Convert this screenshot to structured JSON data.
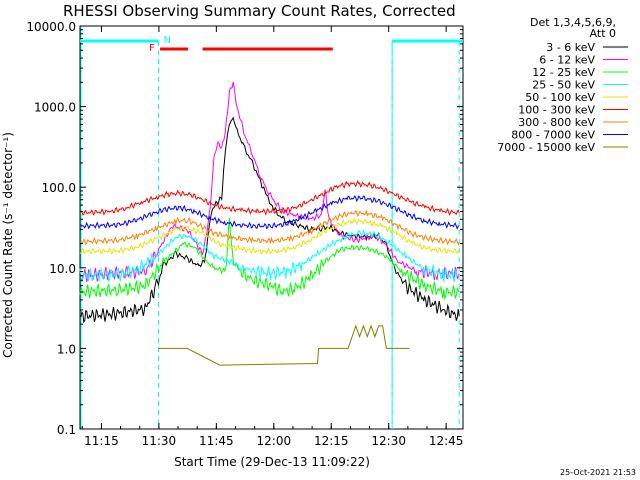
{
  "chart_data": {
    "type": "line",
    "title": "RHESSI Observing Summary Count Rates, Corrected",
    "xlabel": "Start Time (29-Dec-13 11:09:22)",
    "ylabel": "Corrected Count Rate (s⁻¹ detector⁻¹)",
    "yscale": "log",
    "ylim": [
      0.1,
      10000
    ],
    "xlim_min": [
      0,
      100
    ],
    "x_unit": "minutes after 11:09:22",
    "x_ticks": [
      {
        "m": 5.6,
        "label": "11:15"
      },
      {
        "m": 20.6,
        "label": "11:30"
      },
      {
        "m": 35.6,
        "label": "11:45"
      },
      {
        "m": 50.6,
        "label": "12:00"
      },
      {
        "m": 65.6,
        "label": "12:15"
      },
      {
        "m": 80.6,
        "label": "12:30"
      },
      {
        "m": 95.6,
        "label": "12:45"
      }
    ],
    "y_ticks": [
      {
        "v": 10000,
        "label": "10000.0"
      },
      {
        "v": 1000,
        "label": "1000.0"
      },
      {
        "v": 100,
        "label": "100.0"
      },
      {
        "v": 10,
        "label": "10.0"
      },
      {
        "v": 1,
        "label": "1.0"
      },
      {
        "v": 0.1,
        "label": "0.1"
      }
    ],
    "legend_header": [
      "Det 1,3,4,5,6,9,",
      "Att 0"
    ],
    "legend_position": "right",
    "annotations": {
      "flare_marker": "F",
      "night_marker": "N"
    },
    "night_intervals": [
      [
        0,
        20.5
      ],
      [
        81.5,
        100
      ]
    ],
    "saa_dashed_lines": [
      20.5,
      81.5,
      99.0
    ],
    "flare_bars": [
      [
        20.9,
        28.2
      ],
      [
        32.0,
        66.0
      ]
    ],
    "series": [
      {
        "name": "3 - 6 keV",
        "color": "#000000",
        "points": [
          [
            0,
            2.5
          ],
          [
            10,
            2.7
          ],
          [
            17,
            3.1
          ],
          [
            20,
            6
          ],
          [
            22,
            11
          ],
          [
            25,
            15
          ],
          [
            28,
            13
          ],
          [
            31,
            10.5
          ],
          [
            32.5,
            12
          ],
          [
            33,
            17
          ],
          [
            34,
            42
          ],
          [
            35,
            60
          ],
          [
            36,
            65
          ],
          [
            37,
            75
          ],
          [
            38,
            300
          ],
          [
            39,
            600
          ],
          [
            40,
            700
          ],
          [
            41,
            500
          ],
          [
            43,
            300
          ],
          [
            45,
            200
          ],
          [
            47,
            120
          ],
          [
            49,
            75
          ],
          [
            50,
            60
          ],
          [
            52,
            45
          ],
          [
            54,
            38
          ],
          [
            57,
            34
          ],
          [
            60,
            30
          ],
          [
            63,
            31
          ],
          [
            65,
            32
          ],
          [
            68,
            27
          ],
          [
            71,
            25
          ],
          [
            75,
            24
          ],
          [
            78,
            25
          ],
          [
            80,
            19
          ],
          [
            82,
            10
          ],
          [
            85,
            6
          ],
          [
            90,
            4
          ],
          [
            95,
            3
          ],
          [
            99,
            2.5
          ]
        ]
      },
      {
        "name": "6 - 12 keV",
        "color": "#ff00ff",
        "points": [
          [
            0,
            8
          ],
          [
            17,
            9
          ],
          [
            20,
            15
          ],
          [
            24,
            33
          ],
          [
            28,
            30
          ],
          [
            32,
            15
          ],
          [
            33,
            25
          ],
          [
            34,
            55
          ],
          [
            35,
            230
          ],
          [
            36,
            350
          ],
          [
            37,
            300
          ],
          [
            38,
            500
          ],
          [
            39,
            1500
          ],
          [
            40,
            2000
          ],
          [
            41,
            1000
          ],
          [
            43,
            450
          ],
          [
            45,
            260
          ],
          [
            47,
            140
          ],
          [
            49,
            90
          ],
          [
            51,
            65
          ],
          [
            53,
            50
          ],
          [
            56,
            45
          ],
          [
            60,
            40
          ],
          [
            63,
            45
          ],
          [
            64,
            90
          ],
          [
            65,
            40
          ],
          [
            68,
            25
          ],
          [
            72,
            22
          ],
          [
            77,
            25
          ],
          [
            80,
            19
          ],
          [
            83,
            12
          ],
          [
            88,
            9
          ],
          [
            93,
            8.5
          ],
          [
            99,
            8.5
          ]
        ]
      },
      {
        "name": "12 - 25 keV",
        "color": "#00ff00",
        "points": [
          [
            0,
            5
          ],
          [
            10,
            5.3
          ],
          [
            17,
            6
          ],
          [
            22,
            12
          ],
          [
            27,
            20
          ],
          [
            30,
            18
          ],
          [
            33,
            12
          ],
          [
            35,
            10
          ],
          [
            38,
            9
          ],
          [
            39,
            40
          ],
          [
            40,
            12
          ],
          [
            42,
            9
          ],
          [
            45,
            7
          ],
          [
            50,
            6
          ],
          [
            53,
            5
          ],
          [
            56,
            5.5
          ],
          [
            60,
            7.5
          ],
          [
            64,
            12
          ],
          [
            68,
            17
          ],
          [
            72,
            18
          ],
          [
            76,
            17
          ],
          [
            80,
            14
          ],
          [
            84,
            9
          ],
          [
            90,
            6
          ],
          [
            95,
            5
          ],
          [
            99,
            5
          ]
        ]
      },
      {
        "name": "25 - 50 keV",
        "color": "#00ffff",
        "points": [
          [
            0,
            8
          ],
          [
            10,
            8.2
          ],
          [
            15,
            9.5
          ],
          [
            20,
            14
          ],
          [
            25,
            24
          ],
          [
            28,
            25
          ],
          [
            31,
            21
          ],
          [
            35,
            14
          ],
          [
            39,
            12
          ],
          [
            42,
            10
          ],
          [
            46,
            9
          ],
          [
            50,
            8.5
          ],
          [
            54,
            9
          ],
          [
            58,
            11
          ],
          [
            62,
            15
          ],
          [
            66,
            20
          ],
          [
            70,
            25
          ],
          [
            73,
            27
          ],
          [
            77,
            26
          ],
          [
            81,
            20
          ],
          [
            85,
            14
          ],
          [
            90,
            9.5
          ],
          [
            95,
            8.3
          ],
          [
            99,
            8
          ]
        ]
      },
      {
        "name": "50 - 100 keV",
        "color": "#e6e600",
        "points": [
          [
            0,
            16
          ],
          [
            10,
            16.2
          ],
          [
            15,
            18
          ],
          [
            20,
            23
          ],
          [
            25,
            30
          ],
          [
            28,
            31
          ],
          [
            32,
            27
          ],
          [
            36,
            20
          ],
          [
            40,
            18
          ],
          [
            44,
            16.5
          ],
          [
            48,
            16
          ],
          [
            52,
            16.2
          ],
          [
            56,
            18
          ],
          [
            60,
            22
          ],
          [
            64,
            29
          ],
          [
            68,
            35
          ],
          [
            71,
            38
          ],
          [
            75,
            37
          ],
          [
            79,
            33
          ],
          [
            83,
            26
          ],
          [
            87,
            20
          ],
          [
            91,
            17
          ],
          [
            95,
            16.3
          ],
          [
            99,
            16
          ]
        ]
      },
      {
        "name": "100 - 300 keV",
        "color": "#ff0000",
        "points": [
          [
            0,
            48
          ],
          [
            8,
            50
          ],
          [
            12,
            55
          ],
          [
            16,
            65
          ],
          [
            20,
            75
          ],
          [
            23,
            82
          ],
          [
            26,
            84
          ],
          [
            29,
            80
          ],
          [
            32,
            70
          ],
          [
            35,
            60
          ],
          [
            38,
            55
          ],
          [
            42,
            52
          ],
          [
            46,
            50
          ],
          [
            50,
            50
          ],
          [
            54,
            52
          ],
          [
            57,
            58
          ],
          [
            60,
            68
          ],
          [
            64,
            85
          ],
          [
            67,
            102
          ],
          [
            70,
            110
          ],
          [
            73,
            110
          ],
          [
            76,
            105
          ],
          [
            79,
            95
          ],
          [
            82,
            82
          ],
          [
            86,
            67
          ],
          [
            90,
            57
          ],
          [
            94,
            51
          ],
          [
            99,
            48
          ]
        ]
      },
      {
        "name": "300 - 800 keV",
        "color": "#ff8000",
        "points": [
          [
            0,
            21
          ],
          [
            10,
            22
          ],
          [
            15,
            25
          ],
          [
            20,
            31
          ],
          [
            25,
            38
          ],
          [
            28,
            39
          ],
          [
            31,
            34
          ],
          [
            35,
            27
          ],
          [
            40,
            23.5
          ],
          [
            45,
            22
          ],
          [
            50,
            21.5
          ],
          [
            55,
            23
          ],
          [
            60,
            28
          ],
          [
            64,
            36
          ],
          [
            68,
            44
          ],
          [
            71,
            48
          ],
          [
            75,
            47
          ],
          [
            79,
            42
          ],
          [
            83,
            33
          ],
          [
            87,
            26
          ],
          [
            91,
            23
          ],
          [
            95,
            21.5
          ],
          [
            99,
            21
          ]
        ]
      },
      {
        "name": "800 - 7000 keV",
        "color": "#0000ff",
        "points": [
          [
            0,
            33
          ],
          [
            10,
            34
          ],
          [
            14,
            38
          ],
          [
            18,
            45
          ],
          [
            22,
            53
          ],
          [
            26,
            56
          ],
          [
            30,
            50
          ],
          [
            34,
            41
          ],
          [
            38,
            36
          ],
          [
            42,
            34
          ],
          [
            46,
            33
          ],
          [
            50,
            33
          ],
          [
            54,
            35
          ],
          [
            58,
            42
          ],
          [
            62,
            52
          ],
          [
            66,
            64
          ],
          [
            70,
            73
          ],
          [
            74,
            73
          ],
          [
            78,
            67
          ],
          [
            82,
            56
          ],
          [
            86,
            45
          ],
          [
            90,
            38
          ],
          [
            94,
            35
          ],
          [
            99,
            33
          ]
        ]
      },
      {
        "name": "7000 - 15000 keV",
        "color": "#808000",
        "points": [
          [
            20.5,
            1.0
          ],
          [
            28,
            1.0
          ],
          [
            36.5,
            0.62
          ],
          [
            37,
            0.62
          ],
          [
            62,
            0.65
          ],
          [
            62.3,
            1.0
          ],
          [
            63,
            1.0
          ],
          [
            70,
            1.0
          ],
          [
            72,
            1.9
          ],
          [
            73,
            1.4
          ],
          [
            74,
            1.9
          ],
          [
            75,
            1.4
          ],
          [
            76,
            1.9
          ],
          [
            77,
            1.4
          ],
          [
            78,
            1.9
          ],
          [
            79,
            1.9
          ],
          [
            80,
            1.0
          ],
          [
            86,
            1.0
          ]
        ]
      }
    ]
  },
  "footer_timestamp": "25-Oct-2021 21:53"
}
